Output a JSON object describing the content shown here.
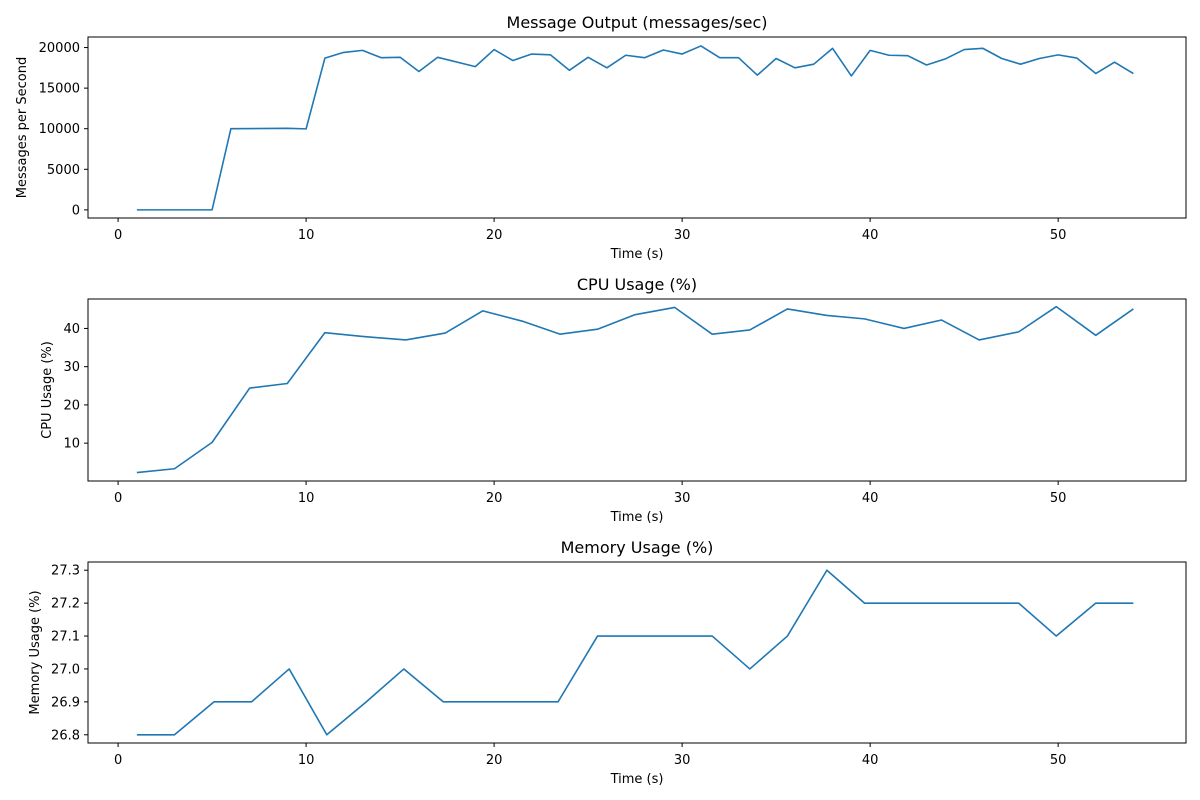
{
  "chart_data": [
    {
      "type": "line",
      "title": "Message Output (messages/sec)",
      "xlabel": "Time (s)",
      "ylabel": "Messages per Second",
      "xlim": [
        -1.6,
        56.8
      ],
      "ylim": [
        -1000,
        21300
      ],
      "xticks": [
        0,
        10,
        20,
        30,
        40,
        50
      ],
      "yticks": [
        0,
        5000,
        10000,
        15000,
        20000
      ],
      "grid": false,
      "color": "#1f77b4",
      "x": [
        1,
        2,
        3,
        4,
        5,
        6,
        9,
        10,
        11,
        12,
        13,
        14,
        15,
        16,
        17,
        19,
        20,
        21,
        22,
        23,
        24,
        25,
        26,
        27,
        28,
        29,
        30,
        31,
        32,
        33,
        34,
        35,
        36,
        37,
        38,
        39,
        40,
        41,
        42,
        43,
        44,
        45,
        46,
        47,
        48,
        49,
        50,
        51,
        52,
        53,
        54
      ],
      "y": [
        0,
        0,
        0,
        0,
        0,
        10000,
        10050,
        9980,
        18700,
        19400,
        19650,
        18750,
        18800,
        17050,
        18800,
        17650,
        19750,
        18400,
        19200,
        19100,
        17200,
        18800,
        17500,
        19050,
        18750,
        19700,
        19200,
        20200,
        18750,
        18750,
        16600,
        18650,
        17500,
        17950,
        19900,
        16500,
        19650,
        19050,
        19000,
        17850,
        18600,
        19750,
        19900,
        18650,
        17950,
        18650,
        19100,
        18700,
        16800,
        18200,
        16800
      ]
    },
    {
      "type": "line",
      "title": "CPU Usage (%)",
      "xlabel": "Time (s)",
      "ylabel": "CPU Usage (%)",
      "xlim": [
        -1.6,
        56.8
      ],
      "ylim": [
        0.1,
        47.7
      ],
      "xticks": [
        0,
        10,
        20,
        30,
        40,
        50
      ],
      "yticks": [
        10,
        20,
        30,
        40
      ],
      "grid": false,
      "color": "#1f77b4",
      "x": [
        1,
        3,
        5,
        7,
        9,
        11,
        13,
        15.3,
        17.4,
        19.4,
        21.5,
        23.5,
        25.5,
        27.5,
        29.6,
        31.6,
        33.6,
        35.6,
        37.7,
        39.7,
        41.8,
        43.8,
        45.8,
        47.9,
        49.9,
        52,
        54
      ],
      "y": [
        2.3,
        3.3,
        10.2,
        24.4,
        25.6,
        38.9,
        37.9,
        37.0,
        38.8,
        44.6,
        41.9,
        38.5,
        39.8,
        43.6,
        45.5,
        38.5,
        39.6,
        45.1,
        43.4,
        42.5,
        40.0,
        42.2,
        37.0,
        39.1,
        45.7,
        38.2,
        45.1
      ]
    },
    {
      "type": "line",
      "title": "Memory Usage (%)",
      "xlabel": "Time (s)",
      "ylabel": "Memory Usage (%)",
      "xlim": [
        -1.6,
        56.8
      ],
      "ylim": [
        26.775,
        27.325
      ],
      "xticks": [
        0,
        10,
        20,
        30,
        40,
        50
      ],
      "yticks": [
        26.8,
        26.9,
        27.0,
        27.1,
        27.2,
        27.3
      ],
      "ytick_format": "1dp",
      "grid": false,
      "color": "#1f77b4",
      "x": [
        1,
        3,
        5.1,
        7.1,
        9.1,
        11.1,
        13.2,
        15.2,
        17.3,
        19.3,
        21.4,
        23.4,
        25.5,
        27.5,
        29.6,
        31.6,
        33.6,
        35.6,
        37.7,
        39.7,
        41.8,
        43.8,
        45.9,
        47.9,
        49.9,
        52,
        54
      ],
      "y": [
        26.8,
        26.8,
        26.9,
        26.9,
        27.0,
        26.8,
        26.9,
        27.0,
        26.9,
        26.9,
        26.9,
        26.9,
        27.1,
        27.1,
        27.1,
        27.1,
        27.0,
        27.1,
        27.3,
        27.2,
        27.2,
        27.2,
        27.2,
        27.2,
        27.1,
        27.2,
        27.2
      ]
    }
  ]
}
